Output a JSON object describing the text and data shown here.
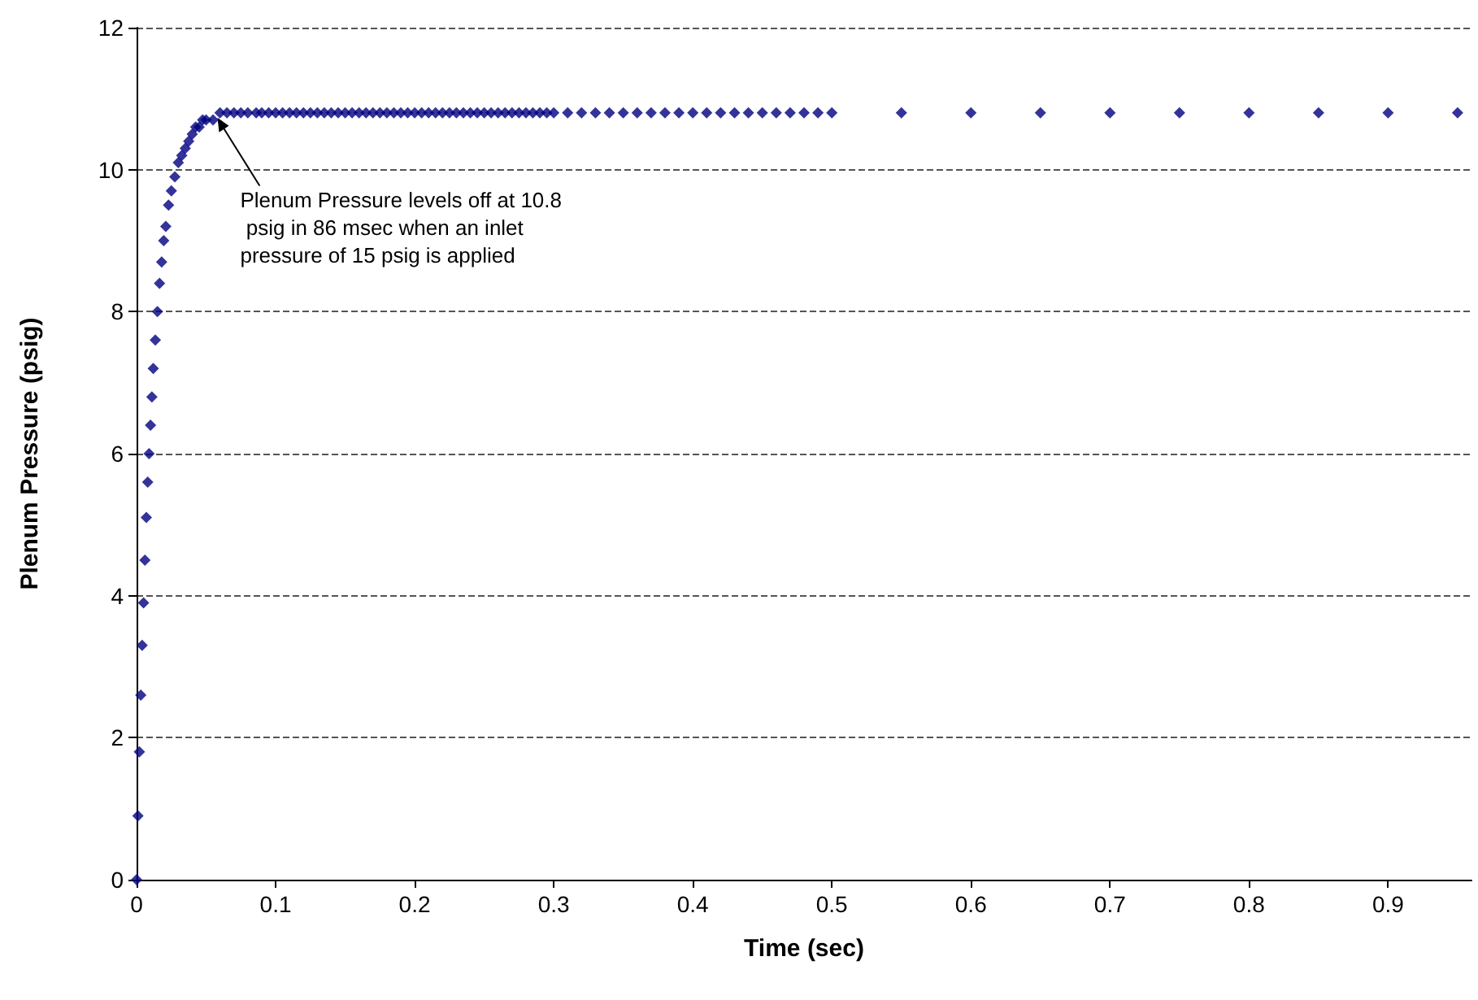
{
  "chart_data": {
    "type": "scatter",
    "xlabel": "Time (sec)",
    "ylabel": "Plenum Pressure (psig)",
    "x": [
      0,
      0.001,
      0.002,
      0.003,
      0.004,
      0.005,
      0.006,
      0.007,
      0.008,
      0.009,
      0.01,
      0.011,
      0.012,
      0.0135,
      0.015,
      0.0165,
      0.018,
      0.0195,
      0.021,
      0.023,
      0.025,
      0.0275,
      0.03,
      0.0325,
      0.035,
      0.0375,
      0.04,
      0.0425,
      0.045,
      0.0475,
      0.05,
      0.055,
      0.06,
      0.065,
      0.07,
      0.075,
      0.08,
      0.086,
      0.09,
      0.095,
      0.1,
      0.105,
      0.11,
      0.115,
      0.12,
      0.125,
      0.13,
      0.135,
      0.14,
      0.145,
      0.15,
      0.155,
      0.16,
      0.165,
      0.17,
      0.175,
      0.18,
      0.185,
      0.19,
      0.195,
      0.2,
      0.205,
      0.21,
      0.215,
      0.22,
      0.225,
      0.23,
      0.235,
      0.24,
      0.245,
      0.25,
      0.255,
      0.26,
      0.265,
      0.27,
      0.275,
      0.28,
      0.285,
      0.29,
      0.295,
      0.3,
      0.31,
      0.32,
      0.33,
      0.34,
      0.35,
      0.36,
      0.37,
      0.38,
      0.39,
      0.4,
      0.41,
      0.42,
      0.43,
      0.44,
      0.45,
      0.46,
      0.47,
      0.48,
      0.49,
      0.5,
      0.55,
      0.6,
      0.65,
      0.7,
      0.75,
      0.8,
      0.85,
      0.9,
      0.95
    ],
    "series": [
      {
        "color": "#000080",
        "values": [
          0,
          0.9,
          1.8,
          2.6,
          3.3,
          3.9,
          4.5,
          5.1,
          5.6,
          6.0,
          6.4,
          6.8,
          7.2,
          7.6,
          8.0,
          8.4,
          8.7,
          9.0,
          9.2,
          9.5,
          9.7,
          9.9,
          10.1,
          10.2,
          10.3,
          10.4,
          10.5,
          10.6,
          10.6,
          10.7,
          10.7,
          10.7,
          10.8,
          10.8,
          10.8,
          10.8,
          10.8,
          10.8,
          10.8,
          10.8,
          10.8,
          10.8,
          10.8,
          10.8,
          10.8,
          10.8,
          10.8,
          10.8,
          10.8,
          10.8,
          10.8,
          10.8,
          10.8,
          10.8,
          10.8,
          10.8,
          10.8,
          10.8,
          10.8,
          10.8,
          10.8,
          10.8,
          10.8,
          10.8,
          10.8,
          10.8,
          10.8,
          10.8,
          10.8,
          10.8,
          10.8,
          10.8,
          10.8,
          10.8,
          10.8,
          10.8,
          10.8,
          10.8,
          10.8,
          10.8,
          10.8,
          10.8,
          10.8,
          10.8,
          10.8,
          10.8,
          10.8,
          10.8,
          10.8,
          10.8,
          10.8,
          10.8,
          10.8,
          10.8,
          10.8,
          10.8,
          10.8,
          10.8,
          10.8,
          10.8,
          10.8,
          10.8,
          10.8,
          10.8,
          10.8,
          10.8,
          10.8,
          10.8,
          10.8,
          10.8
        ]
      }
    ],
    "xlim": [
      0,
      0.96
    ],
    "xticks": [
      0,
      0.1,
      0.2,
      0.3,
      0.4,
      0.5,
      0.6,
      0.7,
      0.8,
      0.9
    ],
    "ylim": [
      0,
      12
    ],
    "yticks": [
      0,
      2,
      4,
      6,
      8,
      10,
      12
    ],
    "grid": "y",
    "marker": "diamond",
    "annotations": [
      {
        "text": "Plenum Pressure levels off at 10.8 psig in 86 msec when an inlet pressure of 15 psig is applied",
        "x": 0.057,
        "y": 10.8
      }
    ]
  }
}
